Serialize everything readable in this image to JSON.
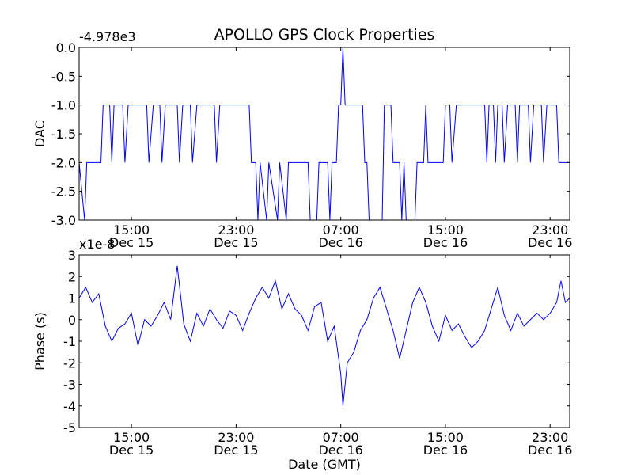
{
  "title": "APOLLO GPS Clock Properties",
  "colors": {
    "line": "#0000ff",
    "axes": "#000000",
    "background": "#ffffff"
  },
  "chart_data": [
    {
      "type": "line",
      "title": "APOLLO GPS Clock Properties",
      "ylabel": "DAC",
      "xlabel": "",
      "offset_label": "-4.978e3",
      "ylim": [
        -3.0,
        0.0
      ],
      "xlim": [
        "Dec 15 11:00",
        "Dec 17 00:30"
      ],
      "grid": false,
      "yticks": [
        "0.0",
        "-0.5",
        "-1.0",
        "-1.5",
        "-2.0",
        "-2.5",
        "-3.0"
      ],
      "xticks": [
        {
          "time": "15:00",
          "date": "Dec 15"
        },
        {
          "time": "23:00",
          "date": "Dec 15"
        },
        {
          "time": "07:00",
          "date": "Dec 16"
        },
        {
          "time": "15:00",
          "date": "Dec 16"
        },
        {
          "time": "23:00",
          "date": "Dec 16"
        }
      ],
      "series": [
        {
          "color": "#0000ff",
          "points": [
            [
              "Dec 15 11:00",
              -2.0
            ],
            [
              "Dec 15 11:25",
              -3.0
            ],
            [
              "Dec 15 11:35",
              -2.0
            ],
            [
              "Dec 15 12:40",
              -2.0
            ],
            [
              "Dec 15 12:50",
              -1.0
            ],
            [
              "Dec 15 13:20",
              -1.0
            ],
            [
              "Dec 15 13:30",
              -2.0
            ],
            [
              "Dec 15 13:40",
              -1.0
            ],
            [
              "Dec 15 14:20",
              -1.0
            ],
            [
              "Dec 15 14:30",
              -2.0
            ],
            [
              "Dec 15 14:45",
              -1.0
            ],
            [
              "Dec 15 16:10",
              -1.0
            ],
            [
              "Dec 15 16:20",
              -2.0
            ],
            [
              "Dec 15 16:40",
              -1.0
            ],
            [
              "Dec 15 17:10",
              -1.0
            ],
            [
              "Dec 15 17:20",
              -2.0
            ],
            [
              "Dec 15 17:35",
              -1.0
            ],
            [
              "Dec 15 18:30",
              -1.0
            ],
            [
              "Dec 15 18:40",
              -2.0
            ],
            [
              "Dec 15 18:55",
              -1.0
            ],
            [
              "Dec 15 19:30",
              -1.0
            ],
            [
              "Dec 15 19:40",
              -2.0
            ],
            [
              "Dec 15 20:00",
              -1.0
            ],
            [
              "Dec 15 21:20",
              -1.0
            ],
            [
              "Dec 15 21:30",
              -2.0
            ],
            [
              "Dec 15 21:45",
              -1.0
            ],
            [
              "Dec 16 00:00",
              -1.0
            ],
            [
              "Dec 16 00:10",
              -2.0
            ],
            [
              "Dec 16 00:30",
              -2.0
            ],
            [
              "Dec 16 00:40",
              -3.0
            ],
            [
              "Dec 16 00:50",
              -2.0
            ],
            [
              "Dec 16 01:20",
              -3.0
            ],
            [
              "Dec 16 01:30",
              -2.0
            ],
            [
              "Dec 16 02:10",
              -3.0
            ],
            [
              "Dec 16 02:20",
              -2.0
            ],
            [
              "Dec 16 02:50",
              -3.0
            ],
            [
              "Dec 16 03:00",
              -2.0
            ],
            [
              "Dec 16 04:30",
              -2.0
            ],
            [
              "Dec 16 04:40",
              -3.0
            ],
            [
              "Dec 16 05:10",
              -3.0
            ],
            [
              "Dec 16 05:20",
              -2.0
            ],
            [
              "Dec 16 06:00",
              -2.0
            ],
            [
              "Dec 16 06:10",
              -3.0
            ],
            [
              "Dec 16 06:20",
              -2.0
            ],
            [
              "Dec 16 06:40",
              -2.0
            ],
            [
              "Dec 16 06:50",
              -1.0
            ],
            [
              "Dec 16 07:00",
              -1.0
            ],
            [
              "Dec 16 07:10",
              0.0
            ],
            [
              "Dec 16 07:20",
              -1.0
            ],
            [
              "Dec 16 08:40",
              -1.0
            ],
            [
              "Dec 16 08:50",
              -2.0
            ],
            [
              "Dec 16 09:00",
              -2.0
            ],
            [
              "Dec 16 09:10",
              -3.0
            ],
            [
              "Dec 16 10:10",
              -3.0
            ],
            [
              "Dec 16 10:20",
              -1.0
            ],
            [
              "Dec 16 10:50",
              -1.0
            ],
            [
              "Dec 16 11:00",
              -2.0
            ],
            [
              "Dec 16 11:30",
              -2.0
            ],
            [
              "Dec 16 11:40",
              -3.0
            ],
            [
              "Dec 16 11:50",
              -2.0
            ],
            [
              "Dec 16 12:00",
              -3.0
            ],
            [
              "Dec 16 12:40",
              -3.0
            ],
            [
              "Dec 16 12:50",
              -2.0
            ],
            [
              "Dec 16 13:20",
              -2.0
            ],
            [
              "Dec 16 13:30",
              -1.0
            ],
            [
              "Dec 16 13:40",
              -2.0
            ],
            [
              "Dec 16 14:50",
              -2.0
            ],
            [
              "Dec 16 15:00",
              -1.0
            ],
            [
              "Dec 16 15:20",
              -1.0
            ],
            [
              "Dec 16 15:30",
              -2.0
            ],
            [
              "Dec 16 15:50",
              -1.0
            ],
            [
              "Dec 16 18:00",
              -1.0
            ],
            [
              "Dec 16 18:10",
              -2.0
            ],
            [
              "Dec 16 18:20",
              -1.0
            ],
            [
              "Dec 16 18:40",
              -1.0
            ],
            [
              "Dec 16 18:50",
              -2.0
            ],
            [
              "Dec 16 19:00",
              -1.0
            ],
            [
              "Dec 16 19:20",
              -1.0
            ],
            [
              "Dec 16 19:30",
              -2.0
            ],
            [
              "Dec 16 19:45",
              -1.0
            ],
            [
              "Dec 16 20:20",
              -1.0
            ],
            [
              "Dec 16 20:30",
              -2.0
            ],
            [
              "Dec 16 20:40",
              -1.0
            ],
            [
              "Dec 16 21:20",
              -1.0
            ],
            [
              "Dec 16 21:30",
              -2.0
            ],
            [
              "Dec 16 21:45",
              -1.0
            ],
            [
              "Dec 16 22:20",
              -1.0
            ],
            [
              "Dec 16 22:30",
              -2.0
            ],
            [
              "Dec 16 22:45",
              -1.0
            ],
            [
              "Dec 16 23:30",
              -1.0
            ],
            [
              "Dec 16 23:40",
              -2.0
            ],
            [
              "Dec 17 00:30",
              -2.0
            ]
          ]
        }
      ]
    },
    {
      "type": "line",
      "title": "",
      "ylabel": "Phase (s)",
      "xlabel": "Date (GMT)",
      "offset_label": "x1e-8",
      "ylim": [
        -5,
        3
      ],
      "xlim": [
        "Dec 15 11:00",
        "Dec 17 00:30"
      ],
      "grid": false,
      "yticks": [
        "3",
        "2",
        "1",
        "0",
        "-1",
        "-2",
        "-3",
        "-4",
        "-5"
      ],
      "xticks": [
        {
          "time": "15:00",
          "date": "Dec 15"
        },
        {
          "time": "23:00",
          "date": "Dec 15"
        },
        {
          "time": "07:00",
          "date": "Dec 16"
        },
        {
          "time": "15:00",
          "date": "Dec 16"
        },
        {
          "time": "23:00",
          "date": "Dec 16"
        }
      ],
      "series": [
        {
          "color": "#0000ff",
          "points": [
            [
              "Dec 15 11:00",
              1.0
            ],
            [
              "Dec 15 11:30",
              1.5
            ],
            [
              "Dec 15 12:00",
              0.8
            ],
            [
              "Dec 15 12:30",
              1.2
            ],
            [
              "Dec 15 13:00",
              -0.3
            ],
            [
              "Dec 15 13:30",
              -1.0
            ],
            [
              "Dec 15 14:00",
              -0.4
            ],
            [
              "Dec 15 14:30",
              -0.2
            ],
            [
              "Dec 15 15:00",
              0.3
            ],
            [
              "Dec 15 15:30",
              -1.2
            ],
            [
              "Dec 15 16:00",
              0.0
            ],
            [
              "Dec 15 16:30",
              -0.3
            ],
            [
              "Dec 15 17:00",
              0.2
            ],
            [
              "Dec 15 17:30",
              0.8
            ],
            [
              "Dec 15 18:00",
              0.0
            ],
            [
              "Dec 15 18:30",
              2.5
            ],
            [
              "Dec 15 19:00",
              -0.2
            ],
            [
              "Dec 15 19:30",
              -1.0
            ],
            [
              "Dec 15 20:00",
              0.3
            ],
            [
              "Dec 15 20:30",
              -0.3
            ],
            [
              "Dec 15 21:00",
              0.5
            ],
            [
              "Dec 15 21:30",
              0.0
            ],
            [
              "Dec 15 22:00",
              -0.4
            ],
            [
              "Dec 15 22:30",
              0.4
            ],
            [
              "Dec 15 23:00",
              0.2
            ],
            [
              "Dec 15 23:30",
              -0.5
            ],
            [
              "Dec 16 00:00",
              0.3
            ],
            [
              "Dec 16 00:30",
              1.0
            ],
            [
              "Dec 16 01:00",
              1.5
            ],
            [
              "Dec 16 01:30",
              1.0
            ],
            [
              "Dec 16 02:00",
              1.8
            ],
            [
              "Dec 16 02:30",
              0.5
            ],
            [
              "Dec 16 03:00",
              1.2
            ],
            [
              "Dec 16 03:30",
              0.5
            ],
            [
              "Dec 16 04:00",
              0.2
            ],
            [
              "Dec 16 04:30",
              -0.5
            ],
            [
              "Dec 16 05:00",
              0.6
            ],
            [
              "Dec 16 05:30",
              0.8
            ],
            [
              "Dec 16 06:00",
              -1.0
            ],
            [
              "Dec 16 06:30",
              -0.3
            ],
            [
              "Dec 16 07:00",
              -2.5
            ],
            [
              "Dec 16 07:10",
              -4.0
            ],
            [
              "Dec 16 07:30",
              -2.0
            ],
            [
              "Dec 16 08:00",
              -1.5
            ],
            [
              "Dec 16 08:30",
              -0.5
            ],
            [
              "Dec 16 09:00",
              0.0
            ],
            [
              "Dec 16 09:30",
              1.0
            ],
            [
              "Dec 16 10:00",
              1.5
            ],
            [
              "Dec 16 10:30",
              0.5
            ],
            [
              "Dec 16 11:00",
              -0.5
            ],
            [
              "Dec 16 11:30",
              -1.8
            ],
            [
              "Dec 16 12:00",
              -0.5
            ],
            [
              "Dec 16 12:30",
              0.8
            ],
            [
              "Dec 16 13:00",
              1.5
            ],
            [
              "Dec 16 13:30",
              0.8
            ],
            [
              "Dec 16 14:00",
              -0.3
            ],
            [
              "Dec 16 14:30",
              -1.0
            ],
            [
              "Dec 16 15:00",
              0.2
            ],
            [
              "Dec 16 15:30",
              -0.5
            ],
            [
              "Dec 16 16:00",
              -0.2
            ],
            [
              "Dec 16 16:30",
              -0.8
            ],
            [
              "Dec 16 17:00",
              -1.3
            ],
            [
              "Dec 16 17:30",
              -1.0
            ],
            [
              "Dec 16 18:00",
              -0.5
            ],
            [
              "Dec 16 18:30",
              0.5
            ],
            [
              "Dec 16 19:00",
              1.5
            ],
            [
              "Dec 16 19:30",
              0.2
            ],
            [
              "Dec 16 20:00",
              -0.5
            ],
            [
              "Dec 16 20:30",
              0.3
            ],
            [
              "Dec 16 21:00",
              -0.3
            ],
            [
              "Dec 16 21:30",
              0.0
            ],
            [
              "Dec 16 22:00",
              0.3
            ],
            [
              "Dec 16 22:30",
              0.0
            ],
            [
              "Dec 16 23:00",
              0.3
            ],
            [
              "Dec 16 23:30",
              0.8
            ],
            [
              "Dec 16 23:50",
              1.8
            ],
            [
              "Dec 17 00:10",
              0.8
            ],
            [
              "Dec 17 00:30",
              1.0
            ]
          ]
        }
      ]
    }
  ]
}
